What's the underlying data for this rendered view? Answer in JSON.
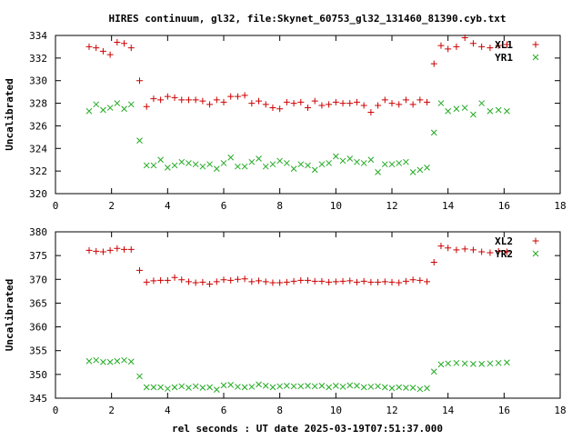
{
  "title": "HIRES continuum, gl32, file:Skynet_60753_gl32_131460_81390.cyb.txt",
  "xlabel": "rel seconds : UT date 2025-03-19T07:51:37.000",
  "colors": {
    "red": "#cc0000",
    "green": "#22aa22",
    "axis": "#000000"
  },
  "chart_data": [
    {
      "type": "scatter",
      "ylabel": "Uncalibrated",
      "xlim": [
        0,
        18
      ],
      "ylim": [
        320,
        334
      ],
      "xticks": [
        0,
        2,
        4,
        6,
        8,
        10,
        12,
        14,
        16,
        18
      ],
      "yticks": [
        320,
        322,
        324,
        326,
        328,
        330,
        332,
        334
      ],
      "grid": false,
      "legend_position": "top-right",
      "series": [
        {
          "name": "XL1",
          "marker": "+",
          "color": "#cc0000",
          "x": [
            1.2,
            1.45,
            1.7,
            1.95,
            2.2,
            2.45,
            2.7,
            3.0,
            3.25,
            3.5,
            3.75,
            4.0,
            4.25,
            4.5,
            4.75,
            5.0,
            5.25,
            5.5,
            5.75,
            6.0,
            6.25,
            6.5,
            6.75,
            7.0,
            7.25,
            7.5,
            7.75,
            8.0,
            8.25,
            8.5,
            8.75,
            9.0,
            9.25,
            9.5,
            9.75,
            10.0,
            10.25,
            10.5,
            10.75,
            11.0,
            11.25,
            11.5,
            11.75,
            12.0,
            12.25,
            12.5,
            12.75,
            13.0,
            13.25,
            13.5,
            13.75,
            14.0,
            14.3,
            14.6,
            14.9,
            15.2,
            15.5,
            15.8,
            16.1
          ],
          "y": [
            333.0,
            332.9,
            332.6,
            332.3,
            333.4,
            333.3,
            332.9,
            330.0,
            327.7,
            328.4,
            328.3,
            328.6,
            328.5,
            328.3,
            328.3,
            328.3,
            328.2,
            327.9,
            328.3,
            328.1,
            328.6,
            328.6,
            328.7,
            328.0,
            328.2,
            327.9,
            327.6,
            327.5,
            328.1,
            328.0,
            328.1,
            327.6,
            328.2,
            327.8,
            327.9,
            328.1,
            328.0,
            328.0,
            328.1,
            327.8,
            327.2,
            327.8,
            328.3,
            328.0,
            327.9,
            328.3,
            327.9,
            328.3,
            328.1,
            331.5,
            333.1,
            332.8,
            333.0,
            333.8,
            333.3,
            333.0,
            332.9,
            333.1,
            333.2
          ],
          "y_note": ""
        },
        {
          "name": "YR1",
          "marker": "x",
          "color": "#22aa22",
          "x": [
            1.2,
            1.45,
            1.7,
            1.95,
            2.2,
            2.45,
            2.7,
            3.0,
            3.25,
            3.5,
            3.75,
            4.0,
            4.25,
            4.5,
            4.75,
            5.0,
            5.25,
            5.5,
            5.75,
            6.0,
            6.25,
            6.5,
            6.75,
            7.0,
            7.25,
            7.5,
            7.75,
            8.0,
            8.25,
            8.5,
            8.75,
            9.0,
            9.25,
            9.5,
            9.75,
            10.0,
            10.25,
            10.5,
            10.75,
            11.0,
            11.25,
            11.5,
            11.75,
            12.0,
            12.25,
            12.5,
            12.75,
            13.0,
            13.25,
            13.5,
            13.75,
            14.0,
            14.3,
            14.6,
            14.9,
            15.2,
            15.5,
            15.8,
            16.1
          ],
          "y": [
            327.3,
            327.9,
            327.4,
            327.6,
            328.0,
            327.5,
            327.9,
            324.7,
            322.5,
            322.5,
            323.0,
            322.3,
            322.5,
            322.8,
            322.7,
            322.6,
            322.4,
            322.6,
            322.2,
            322.7,
            323.2,
            322.4,
            322.4,
            322.8,
            323.1,
            322.4,
            322.6,
            322.9,
            322.7,
            322.2,
            322.6,
            322.5,
            322.1,
            322.6,
            322.7,
            323.3,
            322.9,
            323.1,
            322.8,
            322.7,
            323.0,
            321.9,
            322.6,
            322.6,
            322.7,
            322.8,
            321.9,
            322.1,
            322.3,
            325.4,
            328.0,
            327.3,
            327.5,
            327.6,
            327.0,
            328.0,
            327.3,
            327.4,
            327.3
          ],
          "y_note": ""
        }
      ]
    },
    {
      "type": "scatter",
      "ylabel": "Uncalibrated",
      "xlim": [
        0,
        18
      ],
      "ylim": [
        345,
        380
      ],
      "xticks": [
        0,
        2,
        4,
        6,
        8,
        10,
        12,
        14,
        16,
        18
      ],
      "yticks": [
        345,
        350,
        355,
        360,
        365,
        370,
        375,
        380
      ],
      "grid": false,
      "legend_position": "top-right",
      "series": [
        {
          "name": "XL2",
          "marker": "+",
          "color": "#cc0000",
          "x": [
            1.2,
            1.45,
            1.7,
            1.95,
            2.2,
            2.45,
            2.7,
            3.0,
            3.25,
            3.5,
            3.75,
            4.0,
            4.25,
            4.5,
            4.75,
            5.0,
            5.25,
            5.5,
            5.75,
            6.0,
            6.25,
            6.5,
            6.75,
            7.0,
            7.25,
            7.5,
            7.75,
            8.0,
            8.25,
            8.5,
            8.75,
            9.0,
            9.25,
            9.5,
            9.75,
            10.0,
            10.25,
            10.5,
            10.75,
            11.0,
            11.25,
            11.5,
            11.75,
            12.0,
            12.25,
            12.5,
            12.75,
            13.0,
            13.25,
            13.5,
            13.75,
            14.0,
            14.3,
            14.6,
            14.9,
            15.2,
            15.5,
            15.8,
            16.1
          ],
          "y": [
            376.1,
            375.9,
            375.8,
            376.1,
            376.5,
            376.3,
            376.3,
            371.9,
            369.4,
            369.7,
            369.8,
            369.8,
            370.4,
            369.9,
            369.5,
            369.3,
            369.4,
            369.0,
            369.5,
            369.9,
            369.8,
            370.0,
            370.1,
            369.5,
            369.7,
            369.5,
            369.3,
            369.3,
            369.4,
            369.6,
            369.8,
            369.8,
            369.6,
            369.6,
            369.4,
            369.5,
            369.6,
            369.7,
            369.4,
            369.6,
            369.4,
            369.4,
            369.5,
            369.4,
            369.3,
            369.6,
            369.9,
            369.8,
            369.5,
            373.6,
            377.0,
            376.6,
            376.2,
            376.4,
            376.2,
            375.8,
            375.6,
            375.9,
            375.8
          ],
          "y_note": ""
        },
        {
          "name": "YR2",
          "marker": "x",
          "color": "#22aa22",
          "x": [
            1.2,
            1.45,
            1.7,
            1.95,
            2.2,
            2.45,
            2.7,
            3.0,
            3.25,
            3.5,
            3.75,
            4.0,
            4.25,
            4.5,
            4.75,
            5.0,
            5.25,
            5.5,
            5.75,
            6.0,
            6.25,
            6.5,
            6.75,
            7.0,
            7.25,
            7.5,
            7.75,
            8.0,
            8.25,
            8.5,
            8.75,
            9.0,
            9.25,
            9.5,
            9.75,
            10.0,
            10.25,
            10.5,
            10.75,
            11.0,
            11.25,
            11.5,
            11.75,
            12.0,
            12.25,
            12.5,
            12.75,
            13.0,
            13.25,
            13.5,
            13.75,
            14.0,
            14.3,
            14.6,
            14.9,
            15.2,
            15.5,
            15.8,
            16.1
          ],
          "y": [
            352.8,
            353.0,
            352.6,
            352.6,
            352.8,
            353.0,
            352.7,
            349.6,
            347.3,
            347.3,
            347.3,
            347.0,
            347.3,
            347.5,
            347.2,
            347.5,
            347.2,
            347.3,
            346.8,
            347.7,
            347.8,
            347.4,
            347.3,
            347.4,
            347.9,
            347.6,
            347.3,
            347.5,
            347.6,
            347.5,
            347.5,
            347.6,
            347.5,
            347.6,
            347.3,
            347.6,
            347.4,
            347.7,
            347.6,
            347.3,
            347.4,
            347.5,
            347.3,
            347.1,
            347.3,
            347.2,
            347.2,
            346.9,
            347.1,
            350.6,
            352.1,
            352.3,
            352.4,
            352.3,
            352.2,
            352.2,
            352.3,
            352.4,
            352.5
          ],
          "y_note": ""
        }
      ]
    }
  ]
}
